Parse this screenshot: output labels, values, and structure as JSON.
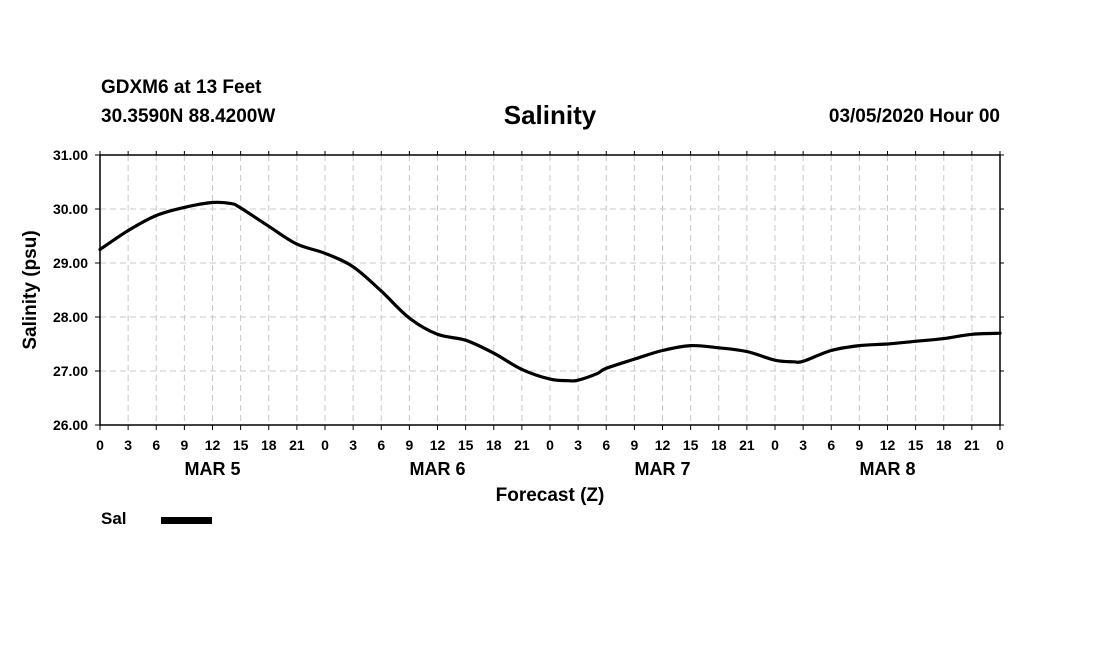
{
  "header": {
    "station": "GDXM6 at 13 Feet",
    "coords": "30.3590N 88.4200W",
    "title": "Salinity",
    "issued": "03/05/2020 Hour 00"
  },
  "legend": {
    "label": "Sal",
    "color": "#000000"
  },
  "chart_data": {
    "type": "line",
    "title": "Salinity",
    "xlabel": "Forecast (Z)",
    "ylabel": "Salinity (psu)",
    "ylim": [
      26,
      31
    ],
    "yticks": [
      "26.00",
      "27.00",
      "28.00",
      "29.00",
      "30.00",
      "31.00"
    ],
    "xlim": [
      0,
      96
    ],
    "xticks": [
      "0",
      "3",
      "6",
      "9",
      "12",
      "15",
      "18",
      "21",
      "0",
      "3",
      "6",
      "9",
      "12",
      "15",
      "18",
      "21",
      "0",
      "3",
      "6",
      "9",
      "12",
      "15",
      "18",
      "21",
      "0",
      "3",
      "6",
      "9",
      "12",
      "15",
      "18",
      "21",
      "0"
    ],
    "day_labels": [
      {
        "label": "MAR 5",
        "hour": 12
      },
      {
        "label": "MAR 6",
        "hour": 36
      },
      {
        "label": "MAR 7",
        "hour": 60
      },
      {
        "label": "MAR 8",
        "hour": 84
      }
    ],
    "grid": true,
    "series": [
      {
        "name": "Sal",
        "color": "#000000",
        "x": [
          0,
          3,
          6,
          9,
          12,
          14,
          15,
          18,
          21,
          24,
          27,
          30,
          33,
          36,
          39,
          42,
          45,
          48,
          50,
          51,
          53,
          54,
          57,
          60,
          63,
          66,
          69,
          72,
          74,
          75,
          78,
          81,
          84,
          87,
          90,
          93,
          96
        ],
        "values": [
          29.25,
          29.6,
          29.88,
          30.03,
          30.12,
          30.1,
          30.02,
          29.68,
          29.35,
          29.18,
          28.93,
          28.48,
          27.98,
          27.68,
          27.57,
          27.33,
          27.03,
          26.85,
          26.82,
          26.83,
          26.95,
          27.05,
          27.22,
          27.38,
          27.47,
          27.43,
          27.36,
          27.2,
          27.17,
          27.18,
          27.38,
          27.47,
          27.5,
          27.55,
          27.6,
          27.68,
          27.7
        ]
      }
    ]
  }
}
